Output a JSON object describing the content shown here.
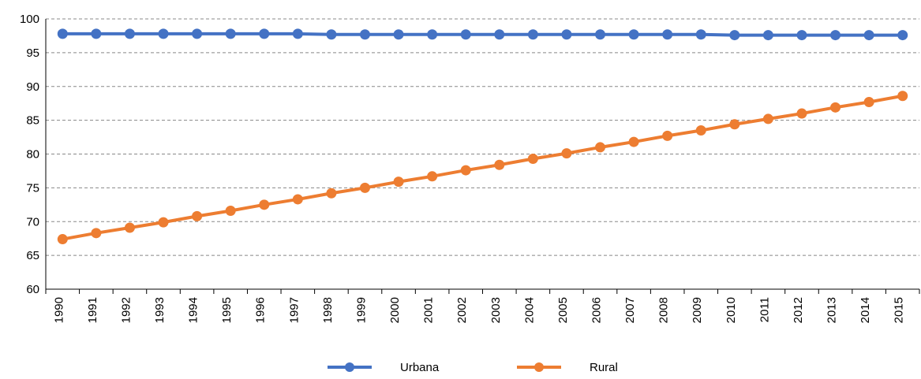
{
  "chart_data": {
    "type": "line",
    "categories": [
      "1990",
      "1991",
      "1992",
      "1993",
      "1994",
      "1995",
      "1996",
      "1997",
      "1998",
      "1999",
      "2000",
      "2001",
      "2002",
      "2003",
      "2004",
      "2005",
      "2006",
      "2007",
      "2008",
      "2009",
      "2010",
      "2011",
      "2012",
      "2013",
      "2014",
      "2015"
    ],
    "series": [
      {
        "name": "Urbana",
        "color": "#4472c4",
        "values": [
          97.8,
          97.8,
          97.8,
          97.8,
          97.8,
          97.8,
          97.8,
          97.8,
          97.7,
          97.7,
          97.7,
          97.7,
          97.7,
          97.7,
          97.7,
          97.7,
          97.7,
          97.7,
          97.7,
          97.7,
          97.6,
          97.6,
          97.6,
          97.6,
          97.6,
          97.6
        ]
      },
      {
        "name": "Rural",
        "color": "#ed7d31",
        "values": [
          67.4,
          68.3,
          69.1,
          69.9,
          70.8,
          71.6,
          72.5,
          73.3,
          74.2,
          75.0,
          75.9,
          76.7,
          77.6,
          78.4,
          79.3,
          80.1,
          81.0,
          81.8,
          82.7,
          83.5,
          84.4,
          85.2,
          86.0,
          86.9,
          87.7,
          88.6
        ]
      }
    ],
    "ylim": [
      60,
      100
    ],
    "yticks": [
      60,
      65,
      70,
      75,
      80,
      85,
      90,
      95,
      100
    ],
    "grid": true,
    "legend": "bottom"
  }
}
